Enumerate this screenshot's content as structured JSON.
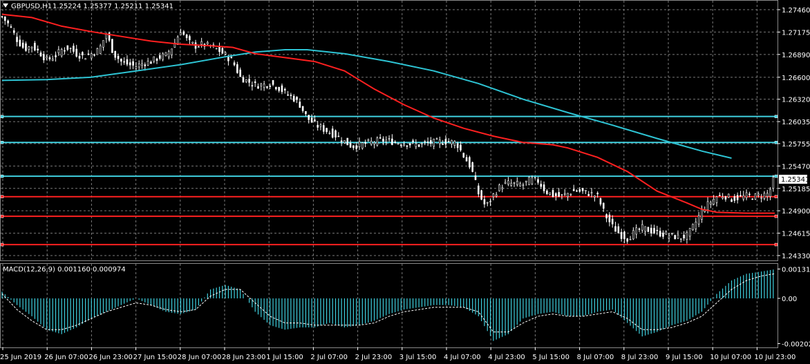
{
  "window": {
    "symbol_title": "GBPUSD,H1",
    "ohlc": "1.25224 1.25377 1.25211 1.25341",
    "macd_title": "MACD(12,26,9) 0.001160 0.000974",
    "current_price": "1.25341"
  },
  "colors": {
    "background": "#000000",
    "grid": "#7a7a7a",
    "bull_candle": "#ffffff",
    "bear_candle": "#ffffff",
    "ma_fast": "#ff2020",
    "ma_slow": "#2ec4d4",
    "hline_cyan": "#3fd1e0",
    "hline_red": "#ff2020",
    "macd_hist": "#3fd1e0",
    "macd_signal": "#ffffff",
    "price_tag_bg": "#ffffff",
    "price_tag_text": "#000000"
  },
  "chart_data": [
    {
      "type": "candlestick",
      "title": "GBPUSD,H1",
      "ylim": [
        1.2433,
        1.2746
      ],
      "y_ticks": [
        "1.27460",
        "1.27175",
        "1.26890",
        "1.26600",
        "1.26320",
        "1.26035",
        "1.25755",
        "1.25470",
        "1.25185",
        "1.24900",
        "1.24615",
        "1.24330"
      ],
      "x_ticks": [
        "25 Jun 2019",
        "26 Jun 07:00",
        "26 Jun 23:00",
        "27 Jun 15:00",
        "28 Jun 07:00",
        "28 Jun 23:00",
        "1 Jul 15:00",
        "2 Jul 07:00",
        "2 Jul 23:00",
        "3 Jul 15:00",
        "4 Jul 07:00",
        "4 Jul 23:00",
        "5 Jul 15:00",
        "8 Jul 07:00",
        "8 Jul 23:00",
        "9 Jul 15:00",
        "10 Jul 07:00",
        "10 Jul 23:00"
      ],
      "close_path": [
        [
          0,
          1.2737
        ],
        [
          5,
          1.2726
        ],
        [
          10,
          1.2708
        ],
        [
          15,
          1.2696
        ],
        [
          20,
          1.27
        ],
        [
          25,
          1.2692
        ],
        [
          30,
          1.2682
        ],
        [
          35,
          1.2686
        ],
        [
          40,
          1.2695
        ],
        [
          45,
          1.2698
        ],
        [
          50,
          1.269
        ],
        [
          55,
          1.2686
        ],
        [
          60,
          1.269
        ],
        [
          65,
          1.2695
        ],
        [
          70,
          1.2715
        ],
        [
          75,
          1.269
        ],
        [
          80,
          1.268
        ],
        [
          85,
          1.2676
        ],
        [
          90,
          1.2674
        ],
        [
          95,
          1.2678
        ],
        [
          100,
          1.268
        ],
        [
          105,
          1.2685
        ],
        [
          110,
          1.2688
        ],
        [
          115,
          1.27
        ],
        [
          120,
          1.272
        ],
        [
          125,
          1.2705
        ],
        [
          130,
          1.27
        ],
        [
          135,
          1.2702
        ],
        [
          140,
          1.2699
        ],
        [
          145,
          1.2695
        ],
        [
          150,
          1.2688
        ],
        [
          155,
          1.268
        ],
        [
          160,
          1.266
        ],
        [
          165,
          1.2655
        ],
        [
          170,
          1.265
        ],
        [
          175,
          1.265
        ],
        [
          180,
          1.2652
        ],
        [
          185,
          1.2648
        ],
        [
          190,
          1.264
        ],
        [
          195,
          1.2635
        ],
        [
          200,
          1.2625
        ],
        [
          205,
          1.2608
        ],
        [
          210,
          1.26
        ],
        [
          215,
          1.2595
        ],
        [
          220,
          1.259
        ],
        [
          225,
          1.2585
        ],
        [
          230,
          1.2578
        ],
        [
          235,
          1.2572
        ],
        [
          240,
          1.2574
        ],
        [
          245,
          1.2576
        ],
        [
          250,
          1.2578
        ],
        [
          255,
          1.258
        ],
        [
          260,
          1.2579
        ],
        [
          265,
          1.2577
        ],
        [
          270,
          1.2576
        ],
        [
          275,
          1.2575
        ],
        [
          280,
          1.2574
        ],
        [
          285,
          1.2576
        ],
        [
          290,
          1.2577
        ],
        [
          295,
          1.2578
        ],
        [
          300,
          1.2578
        ],
        [
          305,
          1.2577
        ],
        [
          310,
          1.256
        ],
        [
          315,
          1.2545
        ],
        [
          320,
          1.2512
        ],
        [
          325,
          1.2495
        ],
        [
          330,
          1.251
        ],
        [
          335,
          1.2522
        ],
        [
          340,
          1.2525
        ],
        [
          345,
          1.2524
        ],
        [
          350,
          1.2523
        ],
        [
          355,
          1.253
        ],
        [
          360,
          1.2528
        ],
        [
          365,
          1.2515
        ],
        [
          370,
          1.251
        ],
        [
          375,
          1.2508
        ],
        [
          380,
          1.2512
        ],
        [
          385,
          1.2516
        ],
        [
          390,
          1.2514
        ],
        [
          395,
          1.2512
        ],
        [
          400,
          1.2508
        ],
        [
          405,
          1.2485
        ],
        [
          410,
          1.247
        ],
        [
          415,
          1.246
        ],
        [
          420,
          1.2455
        ],
        [
          425,
          1.2463
        ],
        [
          430,
          1.2468
        ],
        [
          435,
          1.2465
        ],
        [
          440,
          1.2462
        ],
        [
          445,
          1.246
        ],
        [
          450,
          1.2458
        ],
        [
          455,
          1.2456
        ],
        [
          460,
          1.2458
        ],
        [
          465,
          1.2472
        ],
        [
          470,
          1.249
        ],
        [
          475,
          1.25
        ],
        [
          480,
          1.2508
        ],
        [
          485,
          1.251
        ],
        [
          490,
          1.2505
        ],
        [
          495,
          1.2507
        ],
        [
          500,
          1.2509
        ],
        [
          505,
          1.2508
        ],
        [
          510,
          1.251
        ],
        [
          515,
          1.2512
        ],
        [
          519,
          1.2534
        ]
      ],
      "ma_fast": [
        [
          0,
          1.274
        ],
        [
          20,
          1.2736
        ],
        [
          40,
          1.2725
        ],
        [
          60,
          1.2718
        ],
        [
          80,
          1.2712
        ],
        [
          100,
          1.2706
        ],
        [
          120,
          1.2702
        ],
        [
          140,
          1.27
        ],
        [
          155,
          1.2698
        ],
        [
          170,
          1.269
        ],
        [
          190,
          1.2685
        ],
        [
          210,
          1.268
        ],
        [
          230,
          1.2668
        ],
        [
          250,
          1.2645
        ],
        [
          270,
          1.2625
        ],
        [
          290,
          1.2608
        ],
        [
          310,
          1.2595
        ],
        [
          330,
          1.2585
        ],
        [
          350,
          1.2577
        ],
        [
          370,
          1.2574
        ],
        [
          380,
          1.257
        ],
        [
          400,
          1.2558
        ],
        [
          420,
          1.254
        ],
        [
          440,
          1.2515
        ],
        [
          460,
          1.25
        ],
        [
          470,
          1.2492
        ],
        [
          480,
          1.2488
        ],
        [
          500,
          1.2487
        ],
        [
          519,
          1.2487
        ]
      ],
      "ma_slow": [
        [
          0,
          1.2656
        ],
        [
          30,
          1.2657
        ],
        [
          60,
          1.266
        ],
        [
          90,
          1.2668
        ],
        [
          120,
          1.2676
        ],
        [
          150,
          1.2686
        ],
        [
          170,
          1.2692
        ],
        [
          190,
          1.2695
        ],
        [
          205,
          1.2695
        ],
        [
          230,
          1.269
        ],
        [
          260,
          1.268
        ],
        [
          290,
          1.2668
        ],
        [
          320,
          1.2652
        ],
        [
          350,
          1.2632
        ],
        [
          380,
          1.2615
        ],
        [
          410,
          1.2599
        ],
        [
          440,
          1.2582
        ],
        [
          470,
          1.2566
        ],
        [
          490,
          1.2557
        ]
      ],
      "horizontal_lines": [
        {
          "price": 1.261,
          "color": "cyan"
        },
        {
          "price": 1.2577,
          "color": "cyan"
        },
        {
          "price": 1.2534,
          "color": "cyan"
        },
        {
          "price": 1.2508,
          "color": "red"
        },
        {
          "price": 1.2483,
          "color": "red"
        },
        {
          "price": 1.2447,
          "color": "red"
        }
      ]
    },
    {
      "type": "bar",
      "title": "MACD(12,26,9) 0.001160 0.000974",
      "ylim": [
        -0.0021,
        0.00145
      ],
      "y_ticks": [
        "0.001311",
        "0.00",
        "-0.002021"
      ],
      "histogram": [
        [
          0,
          0.0003
        ],
        [
          10,
          -0.0003
        ],
        [
          20,
          -0.0008
        ],
        [
          30,
          -0.0014
        ],
        [
          40,
          -0.0016
        ],
        [
          50,
          -0.0013
        ],
        [
          60,
          -0.0009
        ],
        [
          70,
          -0.0006
        ],
        [
          80,
          -0.0003
        ],
        [
          90,
          0.0
        ],
        [
          100,
          -0.0003
        ],
        [
          110,
          -0.0006
        ],
        [
          120,
          -0.0007
        ],
        [
          130,
          -0.0005
        ],
        [
          140,
          0.0004
        ],
        [
          150,
          0.0006
        ],
        [
          160,
          0.0004
        ],
        [
          170,
          -0.0006
        ],
        [
          180,
          -0.0012
        ],
        [
          190,
          -0.0014
        ],
        [
          200,
          -0.0013
        ],
        [
          210,
          -0.0013
        ],
        [
          220,
          -0.0011
        ],
        [
          230,
          -0.0013
        ],
        [
          240,
          -0.0012
        ],
        [
          250,
          -0.001
        ],
        [
          260,
          -0.0007
        ],
        [
          270,
          -0.0005
        ],
        [
          280,
          -0.0004
        ],
        [
          290,
          -0.0003
        ],
        [
          300,
          -0.0003
        ],
        [
          310,
          -0.0004
        ],
        [
          320,
          -0.0008
        ],
        [
          330,
          -0.0019
        ],
        [
          340,
          -0.0016
        ],
        [
          350,
          -0.0009
        ],
        [
          360,
          -0.0007
        ],
        [
          370,
          -0.0006
        ],
        [
          380,
          -0.0008
        ],
        [
          390,
          -0.0008
        ],
        [
          400,
          -0.0006
        ],
        [
          410,
          -0.0005
        ],
        [
          420,
          -0.0011
        ],
        [
          430,
          -0.0017
        ],
        [
          440,
          -0.0015
        ],
        [
          450,
          -0.0012
        ],
        [
          460,
          -0.001
        ],
        [
          470,
          -0.0006
        ],
        [
          480,
          0.0002
        ],
        [
          490,
          0.0008
        ],
        [
          500,
          0.0011
        ],
        [
          510,
          0.0012
        ],
        [
          519,
          0.0013
        ]
      ],
      "signal": [
        [
          0,
          0.0002
        ],
        [
          10,
          -0.0005
        ],
        [
          20,
          -0.001
        ],
        [
          30,
          -0.0014
        ],
        [
          40,
          -0.0014
        ],
        [
          50,
          -0.0012
        ],
        [
          60,
          -0.0009
        ],
        [
          70,
          -0.0006
        ],
        [
          80,
          -0.0004
        ],
        [
          90,
          -0.0002
        ],
        [
          100,
          -0.0003
        ],
        [
          110,
          -0.0005
        ],
        [
          120,
          -0.0006
        ],
        [
          130,
          -0.0005
        ],
        [
          140,
          0.0001
        ],
        [
          150,
          0.0004
        ],
        [
          160,
          0.0004
        ],
        [
          170,
          -0.0002
        ],
        [
          180,
          -0.0008
        ],
        [
          190,
          -0.0011
        ],
        [
          200,
          -0.0011
        ],
        [
          210,
          -0.0012
        ],
        [
          220,
          -0.0012
        ],
        [
          230,
          -0.0012
        ],
        [
          240,
          -0.0012
        ],
        [
          250,
          -0.0011
        ],
        [
          260,
          -0.0008
        ],
        [
          270,
          -0.0006
        ],
        [
          280,
          -0.0005
        ],
        [
          290,
          -0.0004
        ],
        [
          300,
          -0.0004
        ],
        [
          310,
          -0.0004
        ],
        [
          320,
          -0.0006
        ],
        [
          330,
          -0.0015
        ],
        [
          340,
          -0.0015
        ],
        [
          350,
          -0.0011
        ],
        [
          360,
          -0.0008
        ],
        [
          370,
          -0.0007
        ],
        [
          380,
          -0.0008
        ],
        [
          390,
          -0.0008
        ],
        [
          400,
          -0.0007
        ],
        [
          410,
          -0.0006
        ],
        [
          420,
          -0.0009
        ],
        [
          430,
          -0.0014
        ],
        [
          440,
          -0.0014
        ],
        [
          450,
          -0.0013
        ],
        [
          460,
          -0.0011
        ],
        [
          470,
          -0.0008
        ],
        [
          480,
          -0.0002
        ],
        [
          490,
          0.0004
        ],
        [
          500,
          0.0008
        ],
        [
          510,
          0.001
        ],
        [
          519,
          0.0011
        ]
      ]
    }
  ]
}
